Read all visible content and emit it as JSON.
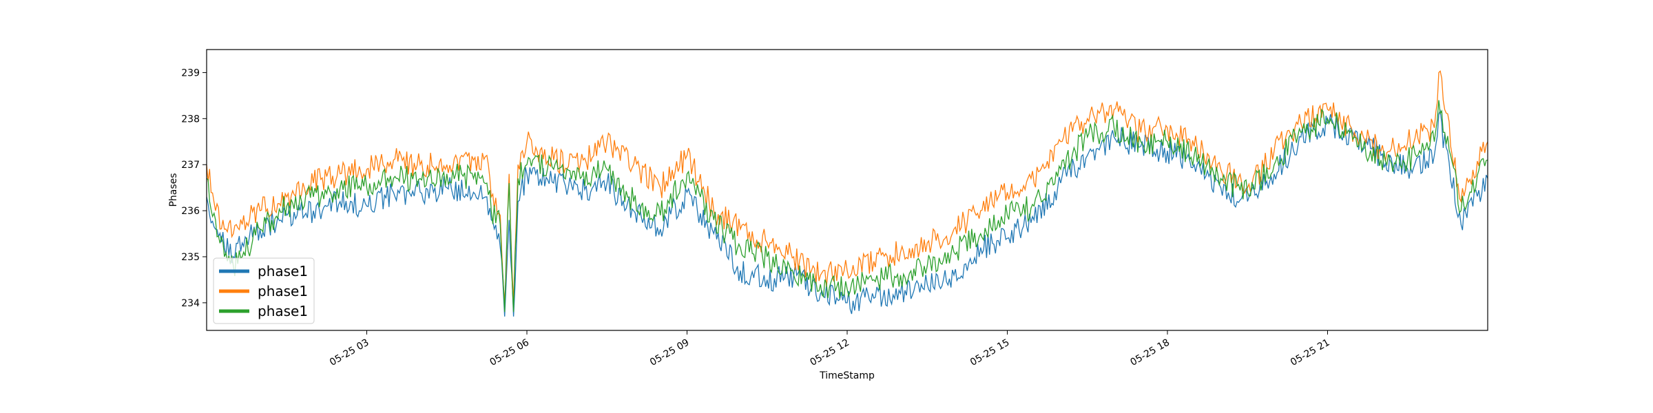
{
  "chart_data": {
    "type": "line",
    "title": "",
    "xlabel": "TimeStamp",
    "ylabel": "Phases",
    "xlim": [
      "2019-05-25T00:00",
      "2019-05-26T00:00"
    ],
    "ylim": [
      233.4,
      239.5
    ],
    "x_ticks": [
      {
        "value": "2019-05-25T03:00",
        "label": "05-25 03"
      },
      {
        "value": "2019-05-25T06:00",
        "label": "05-25 06"
      },
      {
        "value": "2019-05-25T09:00",
        "label": "05-25 09"
      },
      {
        "value": "2019-05-25T12:00",
        "label": "05-25 12"
      },
      {
        "value": "2019-05-25T15:00",
        "label": "05-25 15"
      },
      {
        "value": "2019-05-25T18:00",
        "label": "05-25 18"
      },
      {
        "value": "2019-05-25T21:00",
        "label": "05-25 21"
      }
    ],
    "y_ticks": [
      234,
      235,
      236,
      237,
      238,
      239
    ],
    "grid": false,
    "legend_position": "lower-left",
    "x": [
      "2019-05-25T00:00",
      "2019-05-25T00:10",
      "2019-05-25T00:20",
      "2019-05-25T00:30",
      "2019-05-25T00:40",
      "2019-05-25T01:00",
      "2019-05-25T01:30",
      "2019-05-25T02:00",
      "2019-05-25T02:30",
      "2019-05-25T03:00",
      "2019-05-25T03:30",
      "2019-05-25T04:00",
      "2019-05-25T04:30",
      "2019-05-25T05:00",
      "2019-05-25T05:15",
      "2019-05-25T05:20",
      "2019-05-25T05:30",
      "2019-05-25T05:35",
      "2019-05-25T05:40",
      "2019-05-25T05:45",
      "2019-05-25T05:50",
      "2019-05-25T06:00",
      "2019-05-25T06:30",
      "2019-05-25T07:00",
      "2019-05-25T07:30",
      "2019-05-25T08:00",
      "2019-05-25T08:30",
      "2019-05-25T09:00",
      "2019-05-25T09:30",
      "2019-05-25T10:00",
      "2019-05-25T10:30",
      "2019-05-25T11:00",
      "2019-05-25T11:30",
      "2019-05-25T12:00",
      "2019-05-25T12:30",
      "2019-05-25T13:00",
      "2019-05-25T13:30",
      "2019-05-25T14:00",
      "2019-05-25T14:30",
      "2019-05-25T15:00",
      "2019-05-25T15:30",
      "2019-05-25T16:00",
      "2019-05-25T16:30",
      "2019-05-25T17:00",
      "2019-05-25T17:30",
      "2019-05-25T18:00",
      "2019-05-25T18:30",
      "2019-05-25T19:00",
      "2019-05-25T19:30",
      "2019-05-25T20:00",
      "2019-05-25T20:30",
      "2019-05-25T21:00",
      "2019-05-25T21:30",
      "2019-05-25T22:00",
      "2019-05-25T22:30",
      "2019-05-25T23:00",
      "2019-05-25T23:05",
      "2019-05-25T23:30",
      "2019-05-26T00:00"
    ],
    "series": [
      {
        "name": "phase1",
        "color": "#1f77b4",
        "values": [
          236.3,
          235.6,
          235.2,
          235.0,
          235.3,
          235.6,
          235.9,
          236.0,
          236.2,
          236.1,
          236.4,
          236.4,
          236.5,
          236.4,
          236.3,
          235.8,
          235.2,
          233.7,
          235.8,
          233.7,
          236.2,
          236.8,
          236.6,
          236.4,
          236.6,
          236.0,
          235.6,
          236.4,
          235.5,
          234.7,
          234.5,
          234.6,
          234.2,
          234.0,
          234.1,
          234.2,
          234.4,
          234.6,
          235.2,
          235.4,
          235.8,
          236.6,
          237.2,
          237.6,
          237.4,
          237.3,
          237.0,
          236.5,
          236.2,
          236.8,
          237.6,
          237.9,
          237.6,
          237.2,
          236.9,
          237.2,
          238.1,
          235.7,
          236.7
        ]
      },
      {
        "name": "phase1",
        "color": "#ff7f0e",
        "values": [
          237.0,
          236.0,
          235.6,
          235.5,
          235.7,
          236.0,
          236.3,
          236.6,
          236.8,
          236.9,
          237.1,
          237.0,
          237.0,
          237.1,
          237.2,
          236.3,
          235.9,
          234.0,
          236.8,
          234.0,
          237.0,
          237.5,
          237.1,
          237.0,
          237.5,
          237.0,
          236.5,
          237.2,
          236.0,
          235.6,
          235.3,
          235.0,
          234.6,
          234.7,
          234.9,
          235.1,
          235.3,
          235.6,
          236.0,
          236.4,
          236.6,
          237.5,
          238.0,
          238.2,
          237.7,
          237.8,
          237.4,
          236.9,
          236.5,
          237.3,
          237.9,
          238.2,
          237.7,
          237.3,
          237.5,
          237.8,
          239.0,
          236.2,
          237.5
        ]
      },
      {
        "name": "phase1",
        "color": "#2ca02c",
        "values": [
          236.7,
          235.8,
          235.0,
          234.8,
          235.0,
          235.6,
          236.1,
          236.3,
          236.5,
          236.5,
          236.7,
          236.7,
          236.8,
          236.7,
          236.6,
          236.0,
          235.7,
          233.8,
          236.6,
          233.8,
          236.7,
          237.0,
          236.9,
          236.7,
          236.9,
          236.2,
          235.9,
          236.8,
          235.8,
          235.2,
          235.0,
          234.6,
          234.4,
          234.3,
          234.5,
          234.6,
          234.8,
          235.1,
          235.5,
          235.9,
          236.1,
          236.9,
          237.6,
          237.8,
          237.5,
          237.5,
          237.2,
          236.7,
          236.4,
          237.0,
          237.7,
          238.0,
          237.6,
          237.1,
          237.1,
          237.5,
          238.4,
          236.0,
          237.1
        ]
      }
    ]
  }
}
